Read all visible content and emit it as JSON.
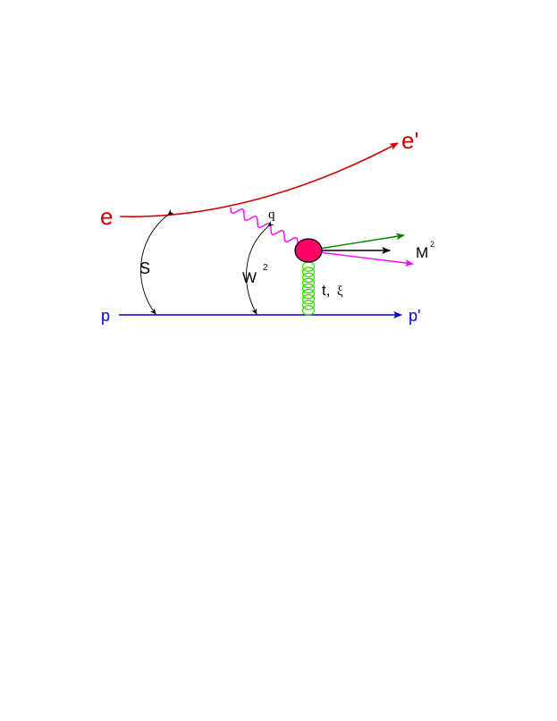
{
  "colors": {
    "electron": "#cc0000",
    "proton": "#0000cc",
    "photon": "#ff00ff",
    "gluon": "#33dd00",
    "blob": "#ff0066",
    "green_arrow": "#008000",
    "black": "#000000"
  },
  "labels": {
    "e_in": "e",
    "e_out": "e'",
    "p_in": "p",
    "p_out": "p'",
    "q": "q",
    "S": "S",
    "W": "W",
    "W_sup": "2",
    "M": "M",
    "M_sup": "2",
    "t": "t,",
    "xi": "ξ"
  }
}
